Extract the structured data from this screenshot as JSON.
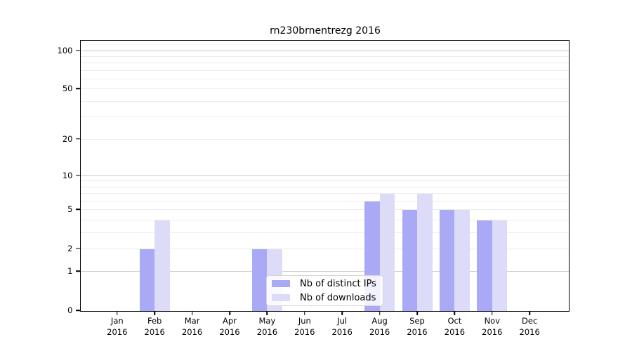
{
  "chart_data": {
    "type": "bar",
    "title": "rn230brnentrezg 2016",
    "categories": [
      "Jan",
      "Feb",
      "Mar",
      "Apr",
      "May",
      "Jun",
      "Jul",
      "Aug",
      "Sep",
      "Oct",
      "Nov",
      "Dec"
    ],
    "year_suffix": "2016",
    "series": [
      {
        "name": "Nb of distinct IPs",
        "color": "#a9a9f6",
        "values": [
          0,
          2,
          0,
          0,
          2,
          0,
          0,
          6,
          5,
          5,
          4,
          0
        ]
      },
      {
        "name": "Nb of downloads",
        "color": "#dcdcf8",
        "values": [
          0,
          4,
          0,
          0,
          2,
          0,
          0,
          7,
          7,
          5,
          4,
          0
        ]
      }
    ],
    "yscale": "log1p",
    "ylim": [
      0,
      118.6
    ],
    "yticks": [
      0,
      1,
      2,
      5,
      10,
      20,
      50,
      100
    ],
    "grid": {
      "major": [
        1,
        10,
        100
      ],
      "minor": [
        2,
        3,
        4,
        5,
        6,
        7,
        8,
        9,
        20,
        30,
        40,
        50,
        60,
        70,
        80,
        90
      ]
    },
    "legend_position": "lower-center",
    "xlabel": "",
    "ylabel": ""
  },
  "colors": {
    "grid_major": "#c8c8c8",
    "grid_minor": "#ececec",
    "axis": "#000000",
    "background": "#ffffff",
    "legend_border": "#d6d6d6"
  }
}
